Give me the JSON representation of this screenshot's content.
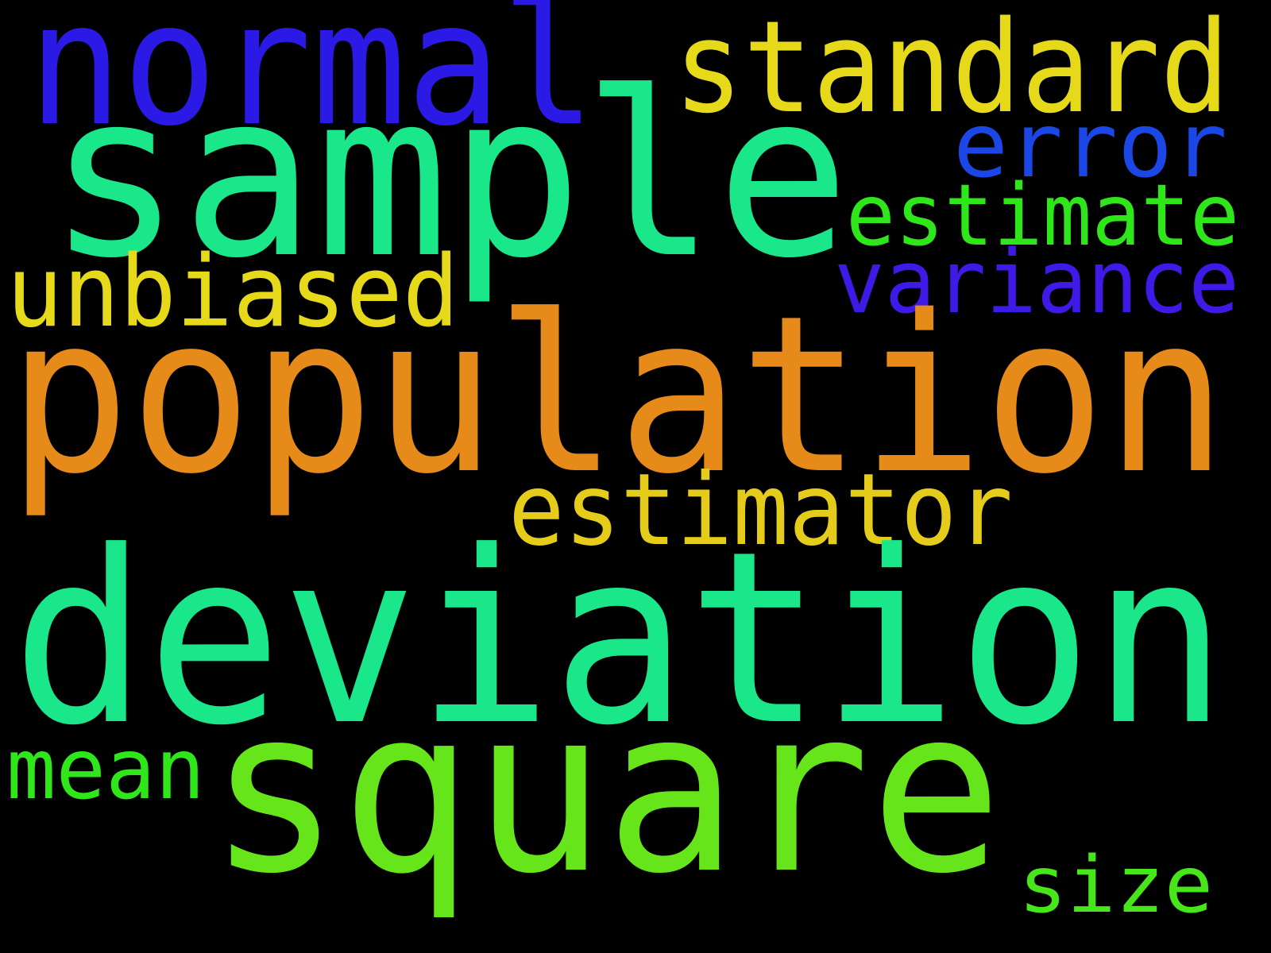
{
  "background": "#000000",
  "words": [
    {
      "id": "normal",
      "text": "normal",
      "color": "#2b1ae6"
    },
    {
      "id": "standard",
      "text": "standard",
      "color": "#e6d91a"
    },
    {
      "id": "sample",
      "text": "sample",
      "color": "#1ae68a"
    },
    {
      "id": "error",
      "text": "error",
      "color": "#1a47e6"
    },
    {
      "id": "estimate",
      "text": "estimate",
      "color": "#2ee61a"
    },
    {
      "id": "variance",
      "text": "variance",
      "color": "#3f1ae6"
    },
    {
      "id": "unbiased",
      "text": "unbiased",
      "color": "#e6d91a"
    },
    {
      "id": "population",
      "text": "population",
      "color": "#e68a1a"
    },
    {
      "id": "estimator",
      "text": "estimator",
      "color": "#e6cc1a"
    },
    {
      "id": "deviation",
      "text": "deviation",
      "color": "#1ae68a"
    },
    {
      "id": "mean",
      "text": "mean",
      "color": "#2ee61a"
    },
    {
      "id": "square",
      "text": "square",
      "color": "#66e61a"
    },
    {
      "id": "size",
      "text": "size",
      "color": "#47e61a"
    }
  ]
}
